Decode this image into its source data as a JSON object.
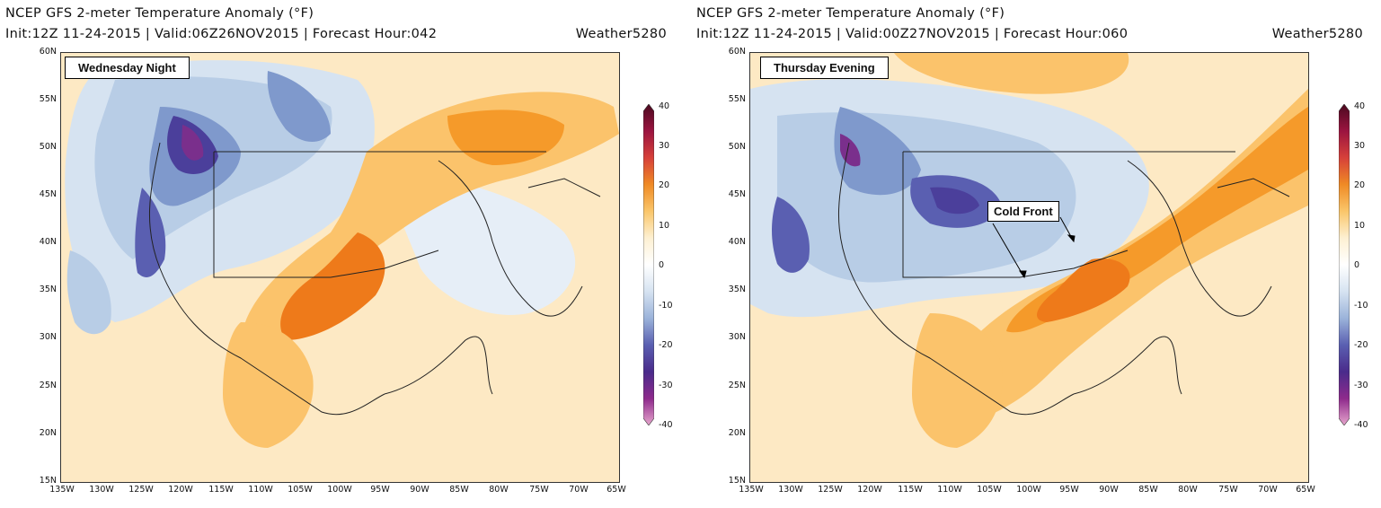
{
  "colors": {
    "warm_light": "#fde9c4",
    "warm_mid": "#fbc36b",
    "warm_strong": "#f59a2a",
    "warm_hot": "#ee7a1a",
    "cool_light": "#e6eef7",
    "cool_mid": "#b8cde6",
    "cool_strong": "#7f99cc",
    "cold_deep": "#4b3f9b",
    "cold_purple": "#7a2f8c",
    "border_line": "#222222"
  },
  "colorbar": {
    "ticks": [
      "40",
      "30",
      "20",
      "10",
      "0",
      "-10",
      "-20",
      "-30",
      "-40"
    ],
    "stops": [
      "#4a0a1f",
      "#9b1440",
      "#d6403a",
      "#ef8a25",
      "#fac66a",
      "#fdf0d2",
      "#ffffff",
      "#d6e3f1",
      "#9bb3da",
      "#5a5fb1",
      "#4a2b8b",
      "#8e2a8c",
      "#e7a6cd"
    ]
  },
  "map_axes": {
    "lat_labels": [
      "60N",
      "55N",
      "50N",
      "45N",
      "40N",
      "35N",
      "30N",
      "25N",
      "20N",
      "15N"
    ],
    "lon_labels": [
      "135W",
      "130W",
      "125W",
      "120W",
      "115W",
      "110W",
      "105W",
      "100W",
      "95W",
      "90W",
      "85W",
      "80W",
      "75W",
      "70W",
      "65W"
    ]
  },
  "panels": [
    {
      "title": "NCEP GFS 2-meter Temperature Anomaly (°F)",
      "subtitle": "Init:12Z 11-24-2015 | Valid:06Z26NOV2015 | Forecast Hour:042",
      "credit": "Weather5280",
      "label": "Wednesday Night"
    },
    {
      "title": "NCEP GFS 2-meter Temperature Anomaly (°F)",
      "subtitle": "Init:12Z 11-24-2015 | Valid:00Z27NOV2015 | Forecast Hour:060",
      "credit": "Weather5280",
      "label": "Thursday Evening",
      "annotation": "Cold Front"
    }
  ]
}
